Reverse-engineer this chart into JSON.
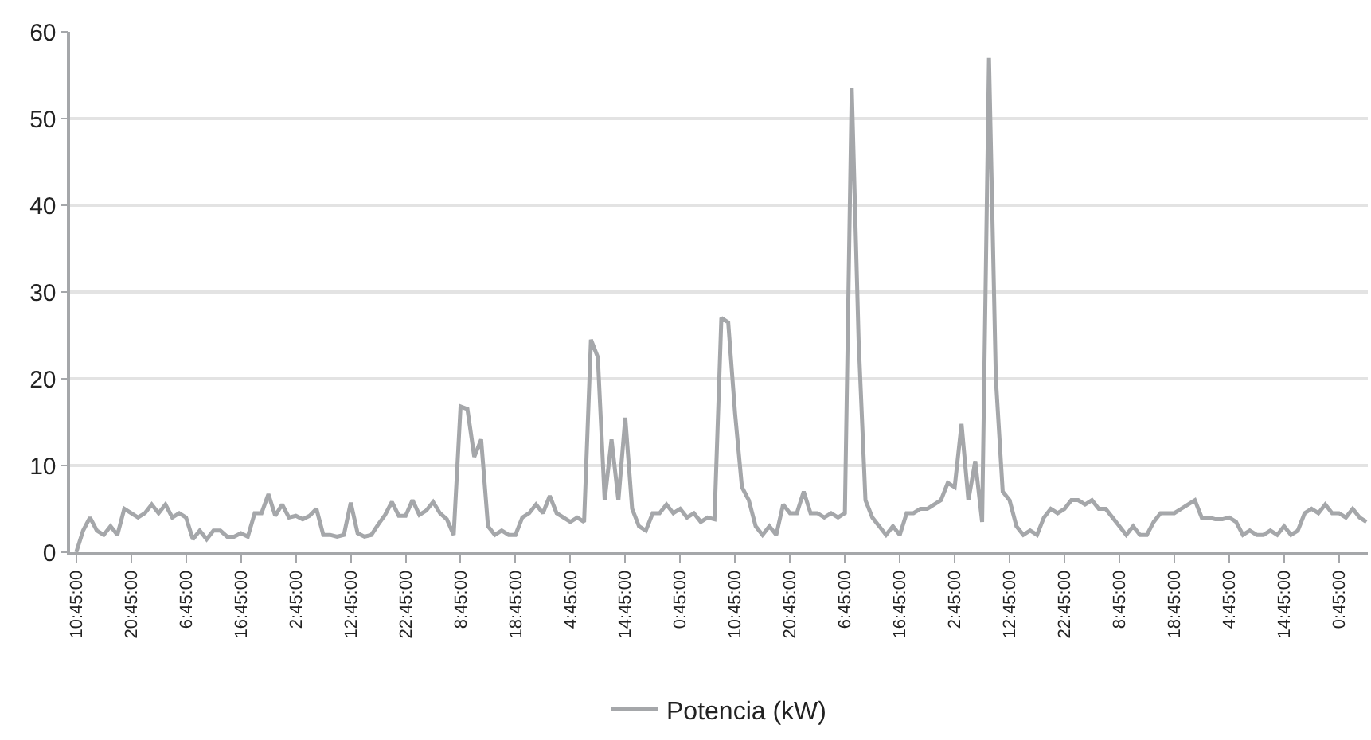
{
  "chart_data": {
    "type": "line",
    "categories": [
      "10:45:00",
      null,
      null,
      null,
      null,
      null,
      null,
      null,
      "20:45:00",
      null,
      null,
      null,
      null,
      null,
      null,
      null,
      "6:45:00",
      null,
      null,
      null,
      null,
      null,
      null,
      null,
      "16:45:00",
      null,
      null,
      null,
      null,
      null,
      null,
      null,
      "2:45:00",
      null,
      null,
      null,
      null,
      null,
      null,
      null,
      "12:45:00",
      null,
      null,
      null,
      null,
      null,
      null,
      null,
      "22:45:00",
      null,
      null,
      null,
      null,
      null,
      null,
      null,
      "8:45:00",
      null,
      null,
      null,
      null,
      null,
      null,
      null,
      "18:45:00",
      null,
      null,
      null,
      null,
      null,
      null,
      null,
      "4:45:00",
      null,
      null,
      null,
      null,
      null,
      null,
      null,
      "14:45:00",
      null,
      null,
      null,
      null,
      null,
      null,
      null,
      "0:45:00",
      null,
      null,
      null,
      null,
      null,
      null,
      null,
      "10:45:00",
      null,
      null,
      null,
      null,
      null,
      null,
      null,
      "20:45:00",
      null,
      null,
      null,
      null,
      null,
      null,
      null,
      "6:45:00",
      null,
      null,
      null,
      null,
      null,
      null,
      null,
      "16:45:00",
      null,
      null,
      null,
      null,
      null,
      null,
      null,
      "2:45:00",
      null,
      null,
      null,
      null,
      null,
      null,
      null,
      "12:45:00",
      null,
      null,
      null,
      null,
      null,
      null,
      null,
      "22:45:00",
      null,
      null,
      null,
      null,
      null,
      null,
      null,
      "8:45:00",
      null,
      null,
      null,
      null,
      null,
      null,
      null,
      "18:45:00",
      null,
      null,
      null,
      null,
      null,
      null,
      null,
      "4:45:00",
      null,
      null,
      null,
      null,
      null,
      null,
      null,
      "14:45:00",
      null,
      null,
      null,
      null,
      null,
      null,
      null,
      "0:45:00",
      null,
      null,
      null,
      null
    ],
    "series": [
      {
        "name": "Potencia (kW)",
        "color": "#a5a7aa",
        "values": [
          0,
          2.5,
          4,
          2.5,
          2,
          3,
          2,
          5,
          4.5,
          4,
          4.5,
          5.5,
          4.5,
          5.5,
          4,
          4.5,
          4,
          1.5,
          2.5,
          1.5,
          2.5,
          2.5,
          1.8,
          1.8,
          2.2,
          1.8,
          4.5,
          4.5,
          6.7,
          4.2,
          5.5,
          4,
          4.2,
          3.8,
          4.2,
          5,
          2,
          2,
          1.8,
          2,
          5.7,
          2.2,
          1.8,
          2,
          3.2,
          4.3,
          5.8,
          4.2,
          4.2,
          6,
          4.3,
          4.8,
          5.8,
          4.5,
          3.8,
          2,
          16.8,
          16.5,
          11,
          13,
          3,
          2,
          2.5,
          2,
          2,
          4,
          4.5,
          5.5,
          4.5,
          6.5,
          4.5,
          4,
          3.5,
          4,
          3.5,
          24.5,
          22.5,
          6,
          13,
          6,
          15.5,
          5,
          3,
          2.5,
          4.5,
          4.5,
          5.5,
          4.5,
          5,
          4,
          4.5,
          3.5,
          4,
          3.8,
          27,
          26.5,
          16,
          7.5,
          6,
          3,
          2,
          3,
          2,
          5.5,
          4.5,
          4.5,
          7,
          4.5,
          4.5,
          4,
          4.5,
          4,
          4.5,
          53.5,
          24.5,
          6,
          4,
          3,
          2,
          3,
          2,
          4.5,
          4.5,
          5,
          5,
          5.5,
          6,
          8,
          7.5,
          14.8,
          6,
          10.5,
          3.5,
          57,
          20,
          7,
          6,
          3,
          2,
          2.5,
          2,
          4,
          5,
          4.5,
          5,
          6,
          6,
          5.5,
          6,
          5,
          5,
          4,
          3,
          2,
          3,
          2,
          2,
          3.5,
          4.5,
          4.5,
          4.5,
          5,
          5.5,
          6,
          4,
          4,
          3.8,
          3.8,
          4,
          3.5,
          2,
          2.5,
          2,
          2,
          2.5,
          2,
          3,
          2,
          2.5,
          4.5,
          5,
          4.5,
          5.5,
          4.5,
          4.5,
          4,
          5,
          4,
          3.5
        ]
      }
    ],
    "ylim": [
      0,
      60
    ],
    "yticks": [
      0,
      10,
      20,
      30,
      40,
      50,
      60
    ],
    "grid": "y",
    "legend": "bottom",
    "marker": "none",
    "line_style": "solid"
  }
}
